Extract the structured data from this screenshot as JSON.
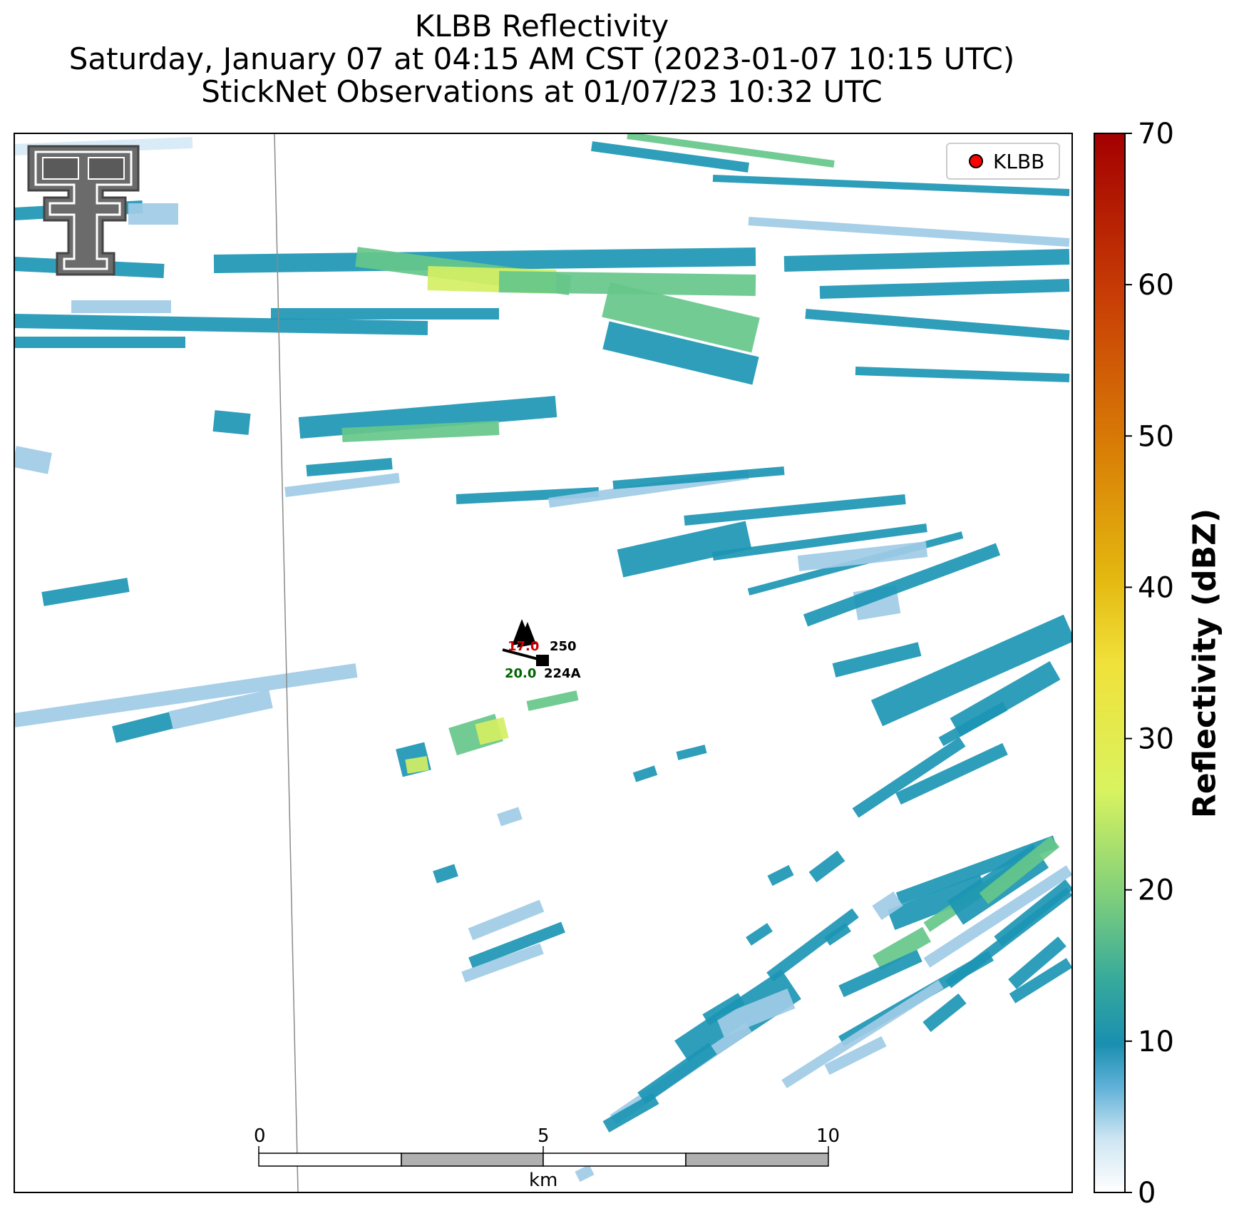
{
  "title": {
    "line1": "KLBB Reflectivity",
    "line2": "Saturday, January 07 at 04:15 AM CST (2023-01-07 10:15 UTC)",
    "line3": "StickNet Observations at 01/07/23 10:32 UTC"
  },
  "legend": {
    "label": "KLBB",
    "marker_color": "#ff0000"
  },
  "colorbar": {
    "label": "Reflectivity (dBZ)",
    "ticks": [
      "0",
      "10",
      "20",
      "30",
      "40",
      "50",
      "60",
      "70"
    ],
    "range": [
      0,
      70
    ]
  },
  "scalebar": {
    "ticks": [
      "0",
      "5",
      "10"
    ],
    "unit": "km"
  },
  "station": {
    "id": "224A",
    "temperature": "17.0",
    "dewpoint": "20.0",
    "pressure": "250",
    "temperature_color": "#cc0000",
    "dewpoint_color": "#006400"
  },
  "logo": {
    "name": "texas-tech-double-t-logo"
  },
  "colors": {
    "teal": "#1c96b4",
    "teal_dark": "#1a8aa6",
    "light_blue": "#9fcbe6",
    "pale_blue": "#d6e9f5",
    "green": "#66c78a",
    "yellow_green": "#d4ef63"
  }
}
